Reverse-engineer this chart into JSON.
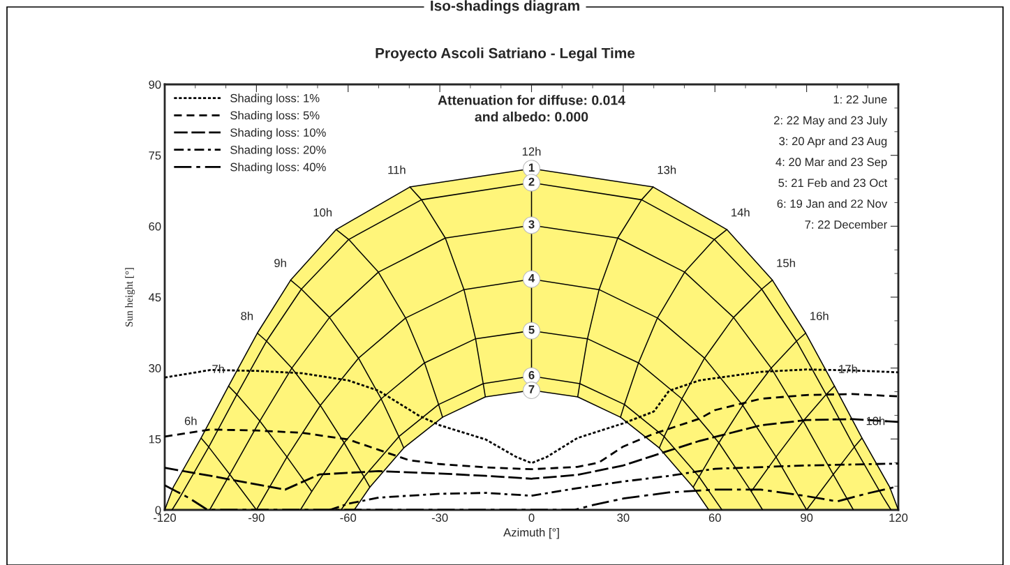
{
  "chart_data": {
    "type": "line",
    "title": "Iso-shadings diagram",
    "subtitle": "Proyecto Ascoli Satriano - Legal Time",
    "xlabel": "Azimuth [°]",
    "ylabel": "Sun height [°]",
    "xlim": [
      -120,
      120
    ],
    "ylim": [
      0,
      90
    ],
    "xticks": [
      -120,
      -90,
      -60,
      -30,
      0,
      30,
      60,
      90,
      120
    ],
    "yticks": [
      0,
      15,
      30,
      45,
      60,
      75,
      90
    ],
    "legend": "top left",
    "series": [
      {
        "color": "#000000",
        "line_style": "solid",
        "x": [
          -120,
          -117.2,
          -108.1,
          -99.1,
          -89.7,
          -78.8,
          -63.9,
          -39.8,
          0,
          39.8,
          63.9,
          78.8,
          89.7,
          99.1,
          108.1,
          117.2,
          120
        ],
        "values": [
          0,
          4.8,
          15.2,
          26.2,
          37.4,
          48.6,
          59.3,
          68.3,
          72.2,
          68.3,
          59.3,
          48.6,
          37.4,
          26.2,
          15.2,
          4.8,
          0
        ]
      },
      {
        "color": "#000000",
        "line_style": "solid",
        "x": [
          -117.6,
          -115,
          -105.6,
          -96.4,
          -86.7,
          -75.3,
          -59.8,
          -36,
          0,
          36,
          59.8,
          75.3,
          86.7,
          96.4,
          105.6,
          115,
          117.6
        ],
        "values": [
          0,
          2.7,
          13.3,
          24.4,
          35.7,
          46.7,
          57.2,
          65.6,
          69.2,
          65.6,
          57.2,
          46.7,
          35.7,
          24.4,
          13.3,
          2.7,
          0
        ]
      },
      {
        "color": "#000000",
        "line_style": "solid",
        "x": [
          -105.3,
          -98.7,
          -88.9,
          -78.4,
          -66.1,
          -50.1,
          -28.2,
          0,
          28.2,
          50.1,
          66.1,
          78.4,
          88.9,
          98.7,
          105.3
        ],
        "values": [
          0,
          7.5,
          18.8,
          30,
          40.7,
          50.3,
          57.5,
          60.2,
          57.5,
          50.3,
          40.7,
          30,
          18.8,
          7.5,
          0
        ]
      },
      {
        "color": "#000000",
        "line_style": "solid",
        "x": [
          -90,
          -80,
          -69.1,
          -56.6,
          -41.2,
          -22.1,
          0,
          22.1,
          41.2,
          56.6,
          69.1,
          80,
          90
        ],
        "values": [
          0,
          11.2,
          22.1,
          32.1,
          40.6,
          46.6,
          48.8,
          46.6,
          40.6,
          32.1,
          22.1,
          11.2,
          0
        ]
      },
      {
        "color": "#000000",
        "line_style": "solid",
        "x": [
          -75.6,
          -71.9,
          -61.3,
          -49.2,
          -35,
          -18.3,
          0,
          18.3,
          35,
          49.2,
          61.3,
          71.9,
          75.6
        ],
        "values": [
          0,
          3.9,
          14.2,
          23.5,
          31.1,
          36.2,
          37.9,
          36.2,
          31.1,
          23.5,
          14.2,
          3.9,
          0
        ]
      },
      {
        "color": "#000000",
        "line_style": "solid",
        "x": [
          -62.3,
          -54.8,
          -43.4,
          -30.4,
          -15.8,
          0,
          15.8,
          30.4,
          43.4,
          54.8,
          62.3
        ],
        "values": [
          0,
          7,
          15.5,
          22.3,
          26.7,
          28.3,
          26.7,
          22.3,
          15.5,
          7,
          0
        ]
      },
      {
        "color": "#000000",
        "line_style": "solid",
        "x": [
          -58,
          -52.9,
          -41.8,
          -29.1,
          -15.1,
          0,
          15.1,
          29.1,
          41.8,
          52.9,
          58
        ],
        "values": [
          0,
          4.8,
          13.1,
          19.6,
          23.9,
          25.3,
          23.9,
          19.6,
          13.1,
          4.8,
          0
        ]
      },
      {
        "color": "#000000",
        "line_style": "solid",
        "x": [
          -108.1,
          -105.6,
          -98.7,
          -90
        ],
        "values": [
          15.2,
          13.3,
          7.5,
          0
        ]
      },
      {
        "color": "#000000",
        "line_style": "solid",
        "x": [
          -99.1,
          -96.4,
          -88.9,
          -80,
          -71.9
        ],
        "values": [
          26.2,
          24.4,
          18.8,
          11.2,
          3.9
        ]
      },
      {
        "color": "#000000",
        "line_style": "solid",
        "x": [
          -89.7,
          -86.7,
          -78.4,
          -69.1,
          -61.3,
          -54.8,
          -52.9
        ],
        "values": [
          37.4,
          35.7,
          30,
          22.1,
          14.2,
          7,
          4.8
        ]
      },
      {
        "color": "#000000",
        "line_style": "solid",
        "x": [
          -78.8,
          -75.3,
          -66.1,
          -56.6,
          -49.2,
          -43.4,
          -41.8
        ],
        "values": [
          48.6,
          46.7,
          40.7,
          32.1,
          23.5,
          15.5,
          13.1
        ]
      },
      {
        "color": "#000000",
        "line_style": "solid",
        "x": [
          -63.9,
          -59.8,
          -50.1,
          -41.2,
          -35,
          -30.4,
          -29.1
        ],
        "values": [
          59.3,
          57.2,
          50.3,
          40.6,
          31.1,
          22.3,
          19.6
        ]
      },
      {
        "color": "#000000",
        "line_style": "solid",
        "x": [
          -39.8,
          -36,
          -28.2,
          -22.1,
          -18.3,
          -15.8,
          -15.1
        ],
        "values": [
          68.3,
          65.6,
          57.5,
          46.6,
          36.2,
          26.7,
          23.9
        ]
      },
      {
        "color": "#000000",
        "line_style": "solid",
        "x": [
          0,
          0,
          0,
          0,
          0,
          0,
          0
        ],
        "values": [
          72.2,
          69.2,
          60.2,
          48.8,
          37.9,
          28.3,
          25.3
        ]
      },
      {
        "color": "#000000",
        "line_style": "solid",
        "x": [
          39.8,
          36,
          28.2,
          22.1,
          18.3,
          15.8,
          15.1
        ],
        "values": [
          68.3,
          65.6,
          57.5,
          46.6,
          36.2,
          26.7,
          23.9
        ]
      },
      {
        "color": "#000000",
        "line_style": "solid",
        "x": [
          63.9,
          59.8,
          50.1,
          41.2,
          35,
          30.4,
          29.1
        ],
        "values": [
          59.3,
          57.2,
          50.3,
          40.6,
          31.1,
          22.3,
          19.6
        ]
      },
      {
        "color": "#000000",
        "line_style": "solid",
        "x": [
          78.8,
          75.3,
          66.1,
          56.6,
          49.2,
          43.4,
          41.8
        ],
        "values": [
          48.6,
          46.7,
          40.7,
          32.1,
          23.5,
          15.5,
          13.1
        ]
      },
      {
        "color": "#000000",
        "line_style": "solid",
        "x": [
          89.7,
          86.7,
          78.4,
          69.1,
          61.3,
          54.8,
          52.9
        ],
        "values": [
          37.4,
          35.7,
          30,
          22.1,
          14.2,
          7,
          4.8
        ]
      },
      {
        "color": "#000000",
        "line_style": "solid",
        "x": [
          99.1,
          96.4,
          88.9,
          80,
          71.9
        ],
        "values": [
          26.2,
          24.4,
          18.8,
          11.2,
          3.9
        ]
      },
      {
        "color": "#000000",
        "line_style": "solid",
        "x": [
          108.1,
          105.6,
          98.7,
          90
        ],
        "values": [
          15.2,
          13.3,
          7.5,
          0
        ]
      },
      {
        "name": "Shading loss: 1%",
        "color": "#000000",
        "line_style": "dotted",
        "x": [
          -120,
          -105,
          -90,
          -75,
          -60,
          -50,
          -37,
          -30,
          -15,
          -5,
          0,
          5,
          15,
          30,
          40,
          45,
          55,
          75,
          90,
          105,
          120
        ],
        "values": [
          28,
          29.6,
          29.4,
          28.9,
          27.4,
          25.2,
          20,
          17.9,
          14.9,
          11.2,
          9.9,
          11.2,
          15.2,
          18.3,
          20.8,
          25.2,
          27.4,
          29.2,
          29.7,
          29.5,
          29.1
        ]
      },
      {
        "name": "Shading loss: 5%",
        "color": "#000000",
        "line_style": "dashed",
        "x": [
          -120,
          -105,
          -90,
          -75,
          -60,
          -50,
          -40,
          -30,
          -15,
          0,
          15,
          22,
          30,
          40,
          55,
          60,
          75,
          90,
          105,
          120
        ],
        "values": [
          15.5,
          17,
          16.8,
          16.3,
          14.9,
          12.7,
          10.5,
          9.7,
          9,
          8.6,
          9.1,
          10,
          13.4,
          16.1,
          19.3,
          21.1,
          23.5,
          24.3,
          24.5,
          24
        ]
      },
      {
        "name": "Shading loss: 10%",
        "color": "#000000",
        "line_style": "longdash",
        "x": [
          -120,
          -105,
          -95,
          -80.6,
          -69.4,
          -50,
          -30,
          -15,
          0,
          15,
          30,
          40,
          55,
          75,
          90,
          105,
          120
        ],
        "values": [
          8.9,
          7.2,
          6,
          4.3,
          7.5,
          8.2,
          7.7,
          7.2,
          6.6,
          7.4,
          9.4,
          11.5,
          14.6,
          17.9,
          19,
          19.2,
          18.6
        ]
      },
      {
        "name": "Shading loss: 20%",
        "color": "#000000",
        "line_style": "dashdot",
        "x": [
          -66,
          -60,
          -50,
          -30,
          -15,
          0,
          15,
          30,
          45,
          60,
          90,
          120
        ],
        "values": [
          0,
          1.3,
          2.6,
          3.4,
          3.6,
          3,
          4.6,
          6,
          7.2,
          8.7,
          9.4,
          9.8
        ]
      },
      {
        "name": "Shading loss: 40%",
        "color": "#000000",
        "line_style": "longdashdot",
        "x": [
          -120,
          -112,
          -106,
          14,
          20,
          30,
          45,
          60,
          75,
          90,
          100,
          110,
          120
        ],
        "values": [
          5.2,
          2.5,
          0,
          0,
          1,
          2.4,
          3.7,
          4.3,
          4.3,
          2.9,
          1.8,
          3.5,
          5
        ]
      }
    ],
    "annotations": [
      "Attenuation for diffuse: 0.014\nand albedo: 0.000",
      "1: 22 June",
      "2: 22 May and 23 July",
      "3: 20 Apr and 23 Aug",
      "4: 20 Mar and 23 Sep",
      "5: 21 Feb and 23 Oct",
      "6: 19 Jan and 22 Nov",
      "7: 22 December",
      {
        "text": "6h",
        "x": -108.1,
        "y": 15.2
      },
      {
        "text": "7h",
        "x": -99.1,
        "y": 26.2
      },
      {
        "text": "8h",
        "x": -89.7,
        "y": 37.4
      },
      {
        "text": "9h",
        "x": -78.8,
        "y": 48.6
      },
      {
        "text": "10h",
        "x": -63.9,
        "y": 59.3
      },
      {
        "text": "11h",
        "x": -39.8,
        "y": 68.3
      },
      {
        "text": "12h",
        "x": 0,
        "y": 72.2
      },
      {
        "text": "13h",
        "x": 39.8,
        "y": 68.3
      },
      {
        "text": "14h",
        "x": 63.9,
        "y": 59.3
      },
      {
        "text": "15h",
        "x": 78.8,
        "y": 48.6
      },
      {
        "text": "16h",
        "x": 89.7,
        "y": 37.4
      },
      {
        "text": "17h",
        "x": 99.1,
        "y": 26.2
      },
      {
        "text": "18h",
        "x": 108.1,
        "y": 15.2
      },
      {
        "text": "1",
        "x": 0,
        "y": 72.2
      },
      {
        "text": "2",
        "x": 0,
        "y": 69.2
      },
      {
        "text": "3",
        "x": 0,
        "y": 60.2
      },
      {
        "text": "4",
        "x": 0,
        "y": 48.8
      },
      {
        "text": "5",
        "x": 0,
        "y": 37.9
      },
      {
        "text": "6",
        "x": 0,
        "y": 28.3
      },
      {
        "text": "7",
        "x": 0,
        "y": 25.3
      }
    ]
  }
}
